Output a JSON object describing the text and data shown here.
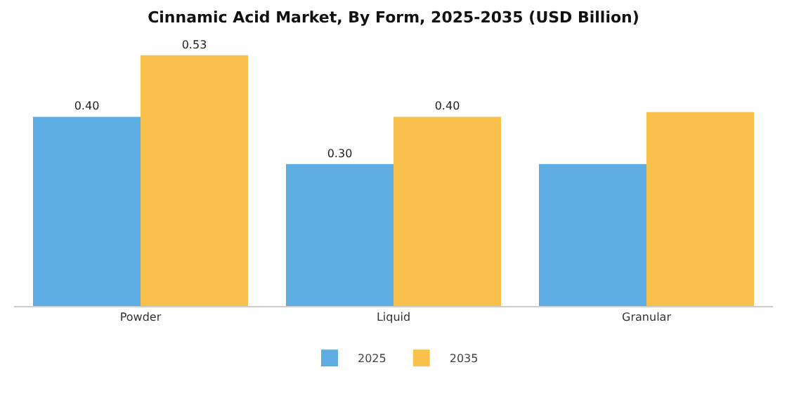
{
  "chart_data": {
    "type": "bar",
    "title": "Cinnamic Acid Market, By Form, 2025-2035 (USD Billion)",
    "categories": [
      "Powder",
      "Liquid",
      "Granular"
    ],
    "series": [
      {
        "name": "2025",
        "color": "#5dade2",
        "values": [
          0.4,
          0.3,
          0.3
        ],
        "value_labels": [
          "0.40",
          "0.30",
          null
        ]
      },
      {
        "name": "2035",
        "color": "#f9c04c",
        "values": [
          0.53,
          0.4,
          0.41
        ],
        "value_labels": [
          "0.53",
          "0.40",
          null
        ]
      }
    ],
    "legend": "bottom",
    "grid": false
  }
}
